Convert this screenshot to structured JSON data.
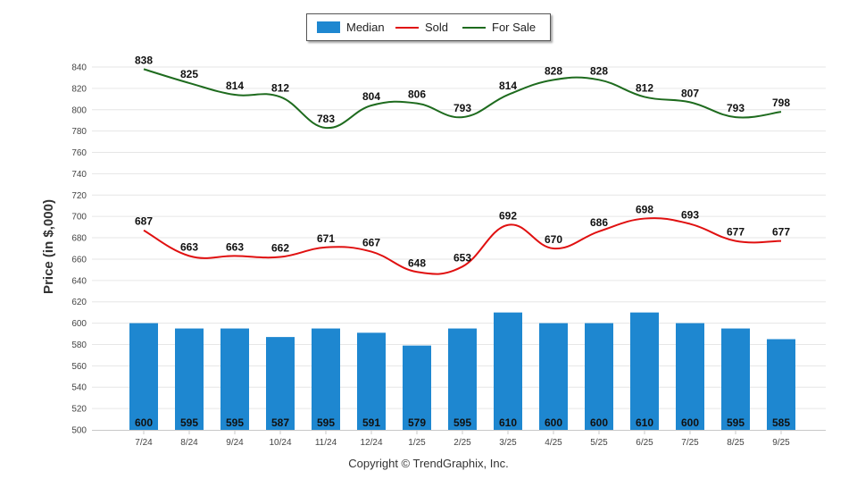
{
  "legend": {
    "median_label": "Median",
    "sold_label": "Sold",
    "forsale_label": "For Sale"
  },
  "copyright": "Copyright © TrendGraphix, Inc.",
  "colors": {
    "median": "#1e87d0",
    "sold": "#e01010",
    "forsale": "#1e6b1e",
    "grid": "#e6e6e6"
  },
  "chart_data": {
    "type": "bar",
    "categories": [
      "7/24",
      "8/24",
      "9/24",
      "10/24",
      "11/24",
      "12/24",
      "1/25",
      "2/25",
      "3/25",
      "4/25",
      "5/25",
      "6/25",
      "7/25",
      "8/25",
      "9/25"
    ],
    "series": [
      {
        "name": "Median",
        "type": "bar",
        "values": [
          600,
          595,
          595,
          587,
          595,
          591,
          579,
          595,
          610,
          600,
          600,
          610,
          600,
          595,
          585
        ]
      },
      {
        "name": "Sold",
        "type": "line",
        "values": [
          687,
          663,
          663,
          662,
          671,
          667,
          648,
          653,
          692,
          670,
          686,
          698,
          693,
          677,
          677
        ]
      },
      {
        "name": "For Sale",
        "type": "line",
        "values": [
          838,
          825,
          814,
          812,
          783,
          804,
          806,
          793,
          814,
          828,
          828,
          812,
          807,
          793,
          798
        ]
      }
    ],
    "ylabel": "Price (in $,000)",
    "xlabel": "",
    "ylim": [
      500,
      840
    ],
    "yticks": [
      500,
      520,
      540,
      560,
      580,
      600,
      620,
      640,
      660,
      680,
      700,
      720,
      740,
      760,
      780,
      800,
      820,
      840
    ],
    "grid": true,
    "legend_position": "top-center"
  }
}
